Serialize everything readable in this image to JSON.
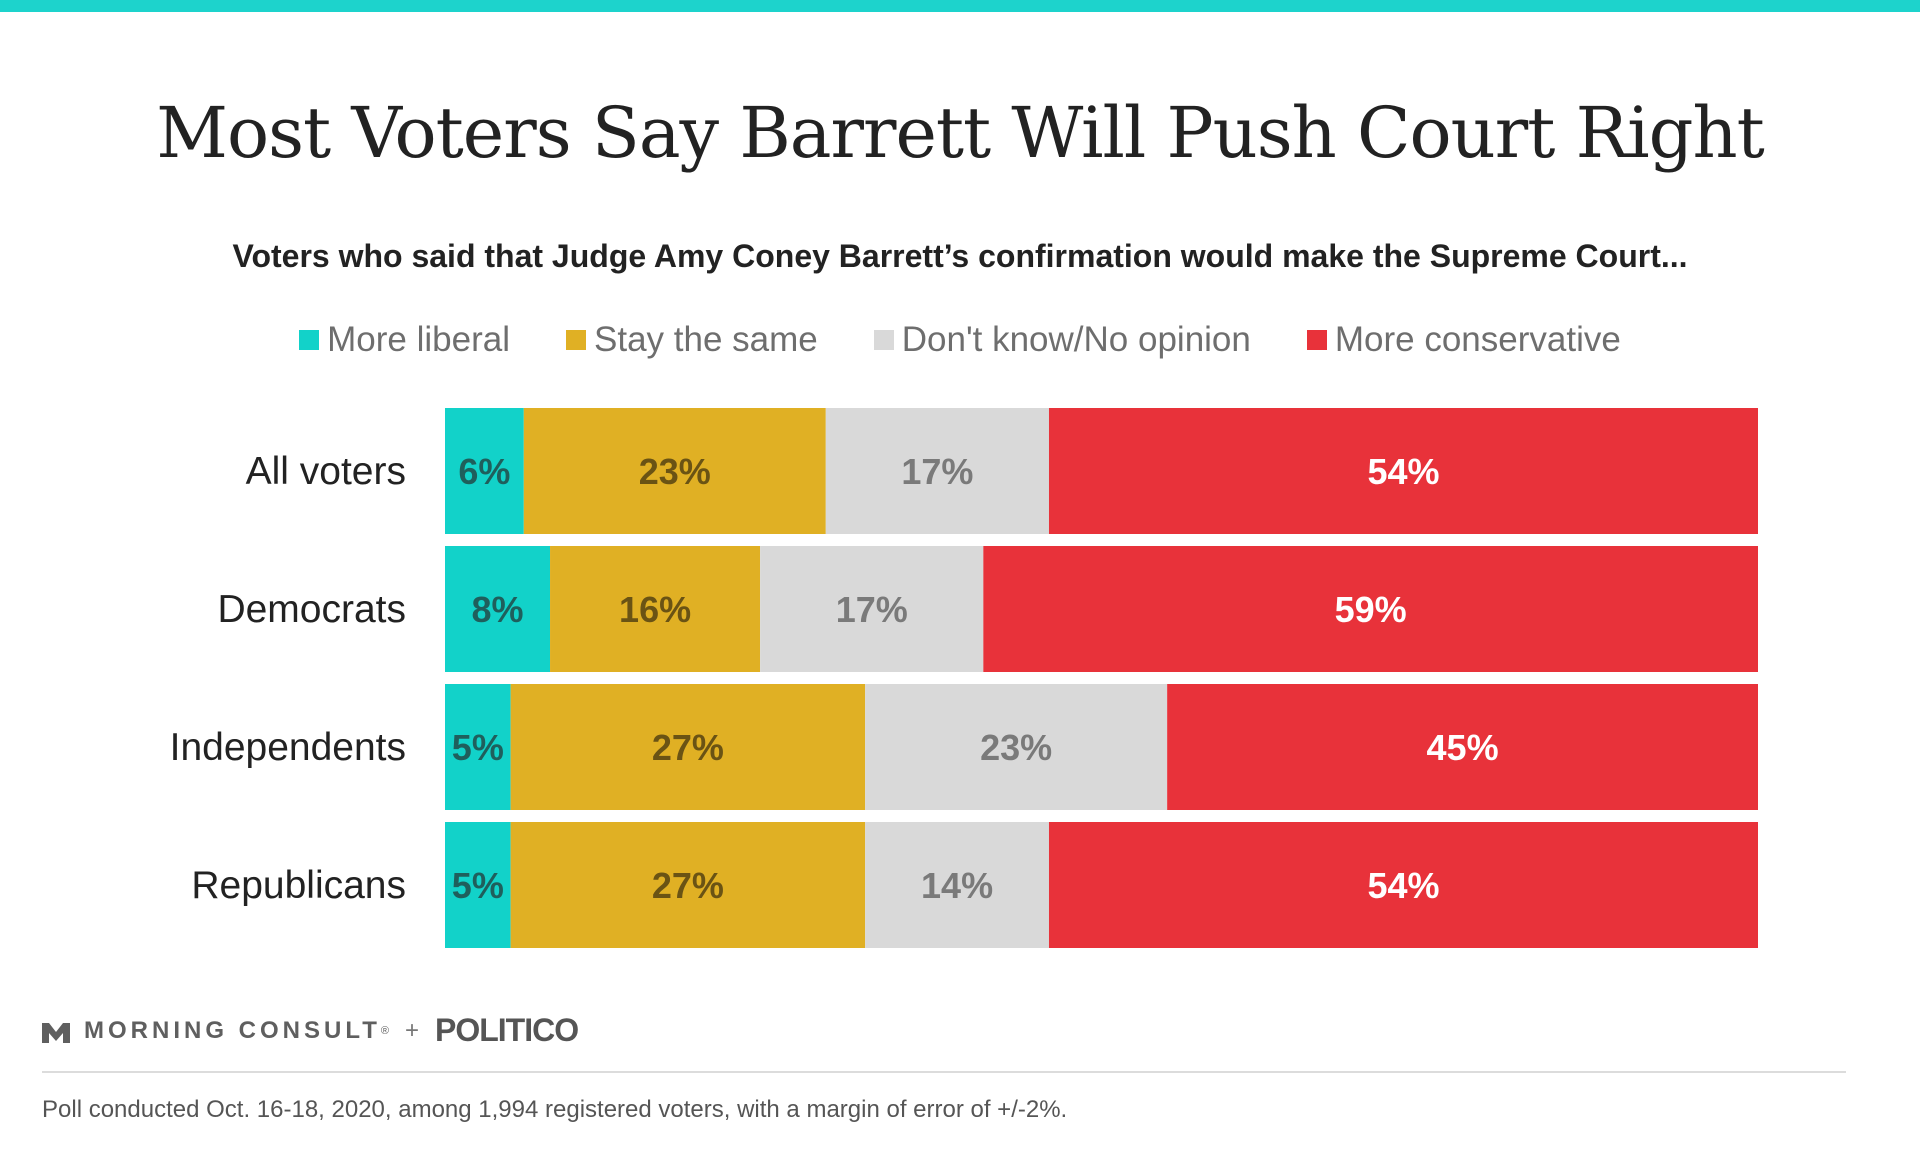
{
  "header": {
    "title": "Most Voters Say Barrett Will Push Court Right",
    "subtitle": "Voters who said that Judge Amy Coney Barrett’s confirmation would make the Supreme Court..."
  },
  "colors": {
    "accent_bar": "#1dd3cc",
    "more_liberal": "#12d2c9",
    "stay_the_same": "#e0b024",
    "dont_know": "#d9d9d9",
    "more_conservative": "#e8323a"
  },
  "chart_data": {
    "type": "bar",
    "orientation": "horizontal",
    "stacked": true,
    "categories": [
      "All voters",
      "Democrats",
      "Independents",
      "Republicans"
    ],
    "series": [
      {
        "name": "More liberal",
        "values": [
          6,
          8,
          5,
          5
        ],
        "color": "#12d2c9",
        "label_color": "#1f5f5c",
        "labels": [
          "6%",
          "8%",
          "5%",
          "5%"
        ]
      },
      {
        "name": "Stay the same",
        "values": [
          23,
          16,
          27,
          27
        ],
        "color": "#e0b024",
        "label_color": "#6a5314",
        "labels": [
          "23%",
          "16%",
          "27%",
          "27%"
        ]
      },
      {
        "name": "Don't know/No opinion",
        "values": [
          17,
          17,
          23,
          14
        ],
        "color": "#d9d9d9",
        "label_color": "#7a7a7a",
        "labels": [
          "17%",
          "17%",
          "23%",
          "14%"
        ]
      },
      {
        "name": "More conservative",
        "values": [
          54,
          59,
          45,
          54
        ],
        "color": "#e8323a",
        "label_color": "#ffffff",
        "labels": [
          "54%",
          "59%",
          "45%",
          "54%"
        ]
      }
    ],
    "xlim": [
      0,
      100
    ],
    "legend_position": "top-center",
    "grid": false
  },
  "branding": {
    "logo_icon": "morning-consult-m-icon",
    "morning_consult": "MORNING CONSULT",
    "trademark": "®",
    "plus": "+",
    "politico": "POLITICO"
  },
  "footnote": "Poll conducted Oct. 16-18, 2020, among 1,994 registered voters, with a margin of error of +/-2%."
}
